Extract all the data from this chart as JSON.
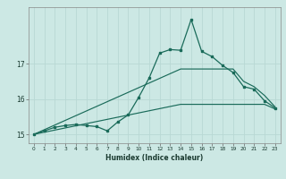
{
  "title": "",
  "xlabel": "Humidex (Indice chaleur)",
  "bg_color": "#cce8e4",
  "line_color": "#1a6b5a",
  "grid_color": "#b8d8d4",
  "xlim": [
    -0.5,
    23.5
  ],
  "ylim": [
    14.75,
    18.6
  ],
  "yticks": [
    15,
    16,
    17
  ],
  "xticks": [
    0,
    1,
    2,
    3,
    4,
    5,
    6,
    7,
    8,
    9,
    10,
    11,
    12,
    13,
    14,
    15,
    16,
    17,
    18,
    19,
    20,
    21,
    22,
    23
  ],
  "series1_x": [
    0,
    1,
    2,
    3,
    4,
    5,
    6,
    7,
    8,
    9,
    10,
    11,
    12,
    13,
    14,
    15,
    16,
    17,
    18,
    19,
    20,
    21,
    22,
    23
  ],
  "series1_y": [
    15.0,
    15.1,
    15.2,
    15.25,
    15.28,
    15.25,
    15.22,
    15.1,
    15.35,
    15.55,
    16.05,
    16.6,
    17.3,
    17.4,
    17.38,
    18.25,
    17.35,
    17.2,
    16.95,
    16.75,
    16.35,
    16.28,
    15.95,
    15.75
  ],
  "series2_x": [
    0,
    14,
    19,
    20,
    21,
    22,
    23
  ],
  "series2_y": [
    15.0,
    16.85,
    16.85,
    16.5,
    16.35,
    16.1,
    15.78
  ],
  "series3_x": [
    0,
    14,
    22,
    23
  ],
  "series3_y": [
    15.0,
    15.85,
    15.85,
    15.72
  ]
}
